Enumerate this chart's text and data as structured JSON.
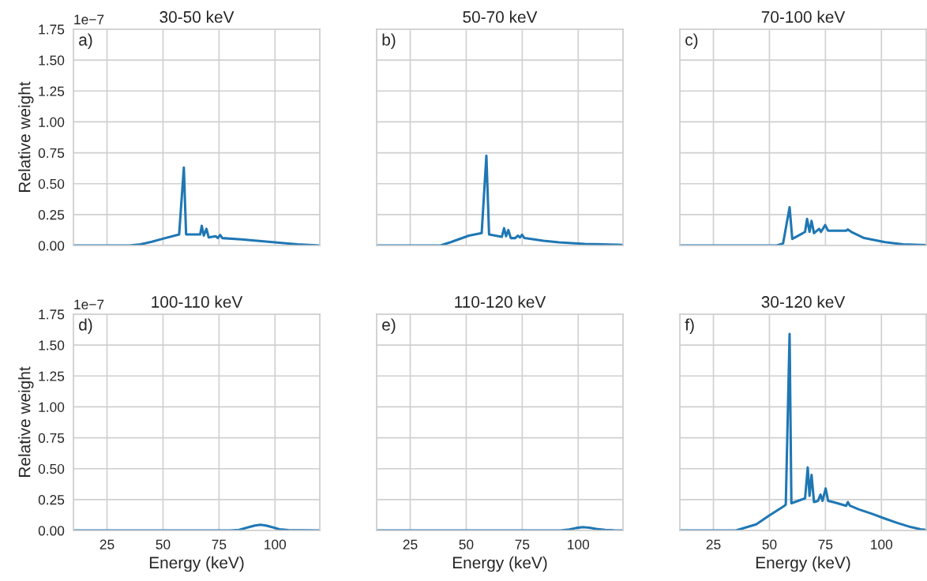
{
  "chart_data": [
    {
      "type": "line",
      "title": "30-50 keV",
      "ylabel": "Relative weight",
      "annotations": [
        "a)",
        "1e−7"
      ],
      "color": "#1f77b4",
      "grid": true,
      "tick_labels": "y",
      "x": [
        10,
        35,
        40,
        45,
        50,
        57.2,
        59.3,
        60.3,
        66.6,
        67.3,
        68.2,
        69.4,
        70.4,
        73.5,
        74.5,
        75.5,
        76.5,
        85,
        100,
        110,
        120
      ],
      "values": [
        0,
        0,
        0.01,
        0.03,
        0.055,
        0.09,
        0.63,
        0.09,
        0.09,
        0.16,
        0.08,
        0.135,
        0.065,
        0.075,
        0.06,
        0.085,
        0.06,
        0.05,
        0.025,
        0.01,
        0
      ],
      "xlim": [
        10,
        120
      ],
      "xticks": [
        25,
        50,
        75,
        100
      ],
      "ylim": [
        0,
        1.75
      ],
      "yticks": [
        {
          "value": 0,
          "label": "0.00"
        },
        {
          "value": 0.25,
          "label": "0.25"
        },
        {
          "value": 0.5,
          "label": "0.50"
        },
        {
          "value": 0.75,
          "label": "0.75"
        },
        {
          "value": 1.0,
          "label": "1.00"
        },
        {
          "value": 1.25,
          "label": "1.25"
        },
        {
          "value": 1.5,
          "label": "1.50"
        },
        {
          "value": 1.75,
          "label": "1.75"
        }
      ]
    },
    {
      "type": "line",
      "title": "50-70 keV",
      "annotations": [
        "b)"
      ],
      "color": "#1f77b4",
      "grid": true,
      "tick_labels": false,
      "x": [
        10,
        38.5,
        43.1,
        51.2,
        56.9,
        59.0,
        60.2,
        65.9,
        66.9,
        67.8,
        68.8,
        69.9,
        71.9,
        73.0,
        74.0,
        74.9,
        76.0,
        84.5,
        91.4,
        102.9,
        120
      ],
      "values": [
        0,
        0,
        0.027,
        0.08,
        0.1,
        0.726,
        0.09,
        0.07,
        0.14,
        0.075,
        0.125,
        0.06,
        0.06,
        0.08,
        0.065,
        0.087,
        0.06,
        0.038,
        0.025,
        0.013,
        0.005
      ],
      "xlim": [
        10,
        120
      ],
      "xticks": [
        25,
        50,
        75,
        100
      ],
      "ylim": [
        0,
        1.75
      ],
      "yticks": [
        {
          "value": 0,
          "label": null
        },
        {
          "value": 0.25,
          "label": null
        },
        {
          "value": 0.5,
          "label": null
        },
        {
          "value": 0.75,
          "label": null
        },
        {
          "value": 1.0,
          "label": null
        },
        {
          "value": 1.25,
          "label": null
        },
        {
          "value": 1.5,
          "label": null
        },
        {
          "value": 1.75,
          "label": null
        }
      ]
    },
    {
      "type": "line",
      "title": "70-100 keV",
      "annotations": [
        "c)"
      ],
      "color": "#1f77b4",
      "grid": true,
      "tick_labels": false,
      "x": [
        10,
        53.3,
        56.1,
        59.0,
        60.2,
        65.9,
        66.8,
        67.9,
        68.8,
        69.9,
        72.2,
        73.0,
        74.9,
        76.2,
        84.3,
        85.0,
        86.6,
        92.3,
        101.6,
        109.6,
        120
      ],
      "values": [
        0,
        0,
        0.017,
        0.31,
        0.053,
        0.11,
        0.215,
        0.11,
        0.2,
        0.1,
        0.135,
        0.11,
        0.165,
        0.12,
        0.12,
        0.13,
        0.11,
        0.06,
        0.027,
        0.01,
        0.003
      ],
      "xlim": [
        10,
        120
      ],
      "xticks": [
        25,
        50,
        75,
        100
      ],
      "ylim": [
        0,
        1.75
      ],
      "yticks": [
        {
          "value": 0,
          "label": null
        },
        {
          "value": 0.25,
          "label": null
        },
        {
          "value": 0.5,
          "label": null
        },
        {
          "value": 0.75,
          "label": null
        },
        {
          "value": 1.0,
          "label": null
        },
        {
          "value": 1.25,
          "label": null
        },
        {
          "value": 1.5,
          "label": null
        },
        {
          "value": 1.75,
          "label": null
        }
      ]
    },
    {
      "type": "line",
      "title": "100-110 keV",
      "xlabel": "Energy (keV)",
      "ylabel": "Relative weight",
      "annotations": [
        "d)",
        "1e−7"
      ],
      "color": "#1f77b4",
      "grid": true,
      "x": [
        10,
        80,
        84,
        88,
        91,
        93.5,
        96,
        99,
        102,
        106,
        112,
        120
      ],
      "values": [
        0,
        0,
        0.005,
        0.025,
        0.04,
        0.046,
        0.04,
        0.025,
        0.01,
        0.003,
        0.001,
        0
      ],
      "xlim": [
        10,
        120
      ],
      "xticks": [
        25,
        50,
        75,
        100
      ],
      "ylim": [
        0,
        1.75
      ],
      "yticks": [
        {
          "value": 0,
          "label": "0.00"
        },
        {
          "value": 0.25,
          "label": "0.25"
        },
        {
          "value": 0.5,
          "label": "0.50"
        },
        {
          "value": 0.75,
          "label": "0.75"
        },
        {
          "value": 1.0,
          "label": "1.00"
        },
        {
          "value": 1.25,
          "label": "1.25"
        },
        {
          "value": 1.5,
          "label": "1.50"
        },
        {
          "value": 1.75,
          "label": "1.75"
        }
      ]
    },
    {
      "type": "line",
      "title": "110-120 keV",
      "xlabel": "Energy (keV)",
      "annotations": [
        "e)"
      ],
      "color": "#1f77b4",
      "grid": true,
      "tick_labels": "x",
      "x": [
        10,
        92,
        96,
        99,
        102,
        105,
        108,
        112,
        116,
        120
      ],
      "values": [
        0,
        0,
        0.008,
        0.02,
        0.027,
        0.022,
        0.012,
        0.004,
        0.001,
        0
      ],
      "xlim": [
        10,
        120
      ],
      "xticks": [
        25,
        50,
        75,
        100
      ],
      "ylim": [
        0,
        1.75
      ],
      "yticks": [
        {
          "value": 0,
          "label": null
        },
        {
          "value": 0.25,
          "label": null
        },
        {
          "value": 0.5,
          "label": null
        },
        {
          "value": 0.75,
          "label": null
        },
        {
          "value": 1.0,
          "label": null
        },
        {
          "value": 1.25,
          "label": null
        },
        {
          "value": 1.5,
          "label": null
        },
        {
          "value": 1.75,
          "label": null
        }
      ]
    },
    {
      "type": "line",
      "title": "30-120 keV",
      "xlabel": "Energy (keV)",
      "annotations": [
        "f)"
      ],
      "color": "#1f77b4",
      "grid": true,
      "tick_labels": "x",
      "x": [
        10,
        35,
        38.2,
        44.1,
        49.8,
        56.7,
        57.3,
        59.0,
        59.8,
        65.9,
        67.1,
        67.9,
        68.8,
        69.9,
        71.7,
        72.8,
        73.7,
        75.1,
        76.2,
        78.5,
        84.3,
        85.0,
        86.0,
        90.0,
        95.8,
        101.6,
        107.3,
        113,
        117.5,
        120
      ],
      "values": [
        0,
        0,
        0.017,
        0.05,
        0.12,
        0.2,
        0.21,
        1.59,
        0.22,
        0.26,
        0.51,
        0.28,
        0.45,
        0.23,
        0.24,
        0.29,
        0.24,
        0.34,
        0.24,
        0.23,
        0.2,
        0.23,
        0.2,
        0.17,
        0.135,
        0.096,
        0.06,
        0.028,
        0.01,
        0.005
      ],
      "xlim": [
        10,
        120
      ],
      "xticks": [
        25,
        50,
        75,
        100
      ],
      "ylim": [
        0,
        1.75
      ],
      "yticks": [
        {
          "value": 0,
          "label": null
        },
        {
          "value": 0.25,
          "label": null
        },
        {
          "value": 0.5,
          "label": null
        },
        {
          "value": 0.75,
          "label": null
        },
        {
          "value": 1.0,
          "label": null
        },
        {
          "value": 1.25,
          "label": null
        },
        {
          "value": 1.5,
          "label": null
        },
        {
          "value": 1.75,
          "label": null
        }
      ]
    }
  ]
}
